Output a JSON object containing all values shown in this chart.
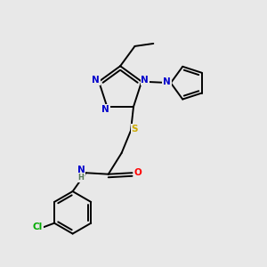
{
  "background_color": "#e8e8e8",
  "atom_colors": {
    "N": "#0000cc",
    "S": "#ccaa00",
    "O": "#ff0000",
    "Cl": "#00aa00",
    "C": "#000000",
    "H": "#557755"
  },
  "bond_color": "#000000",
  "bond_width": 1.4,
  "fig_size": [
    3.0,
    3.0
  ],
  "dpi": 100
}
